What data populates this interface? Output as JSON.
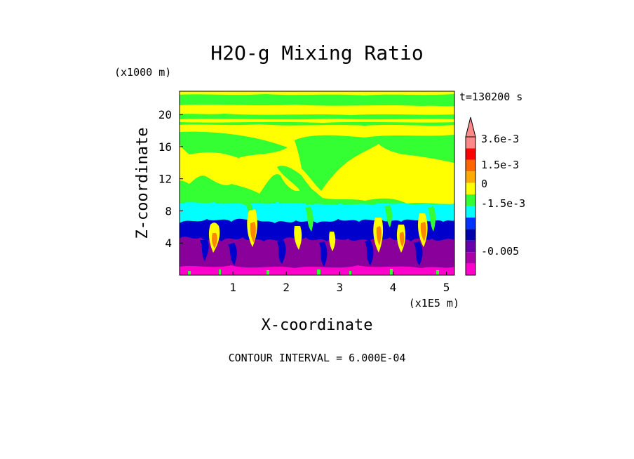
{
  "chart_data": {
    "type": "heatmap",
    "title": "H2O-g Mixing Ratio",
    "time_label": "t=130200 s",
    "xlabel": "X-coordinate",
    "ylabel": "Z-coordinate",
    "x_unit": "(x1E5 m)",
    "y_unit": "(x1000 m)",
    "xlim": [
      0,
      5.15
    ],
    "ylim": [
      0,
      22.9
    ],
    "x_ticks": [
      1,
      2,
      3,
      4,
      5
    ],
    "y_ticks": [
      4,
      8,
      12,
      16,
      20
    ],
    "footer": "CONTOUR INTERVAL = 6.000E-04",
    "colorbar": {
      "labels": [
        {
          "text": "3.6e-3",
          "value": 0.0036
        },
        {
          "text": "1.5e-3",
          "value": 0.0015
        },
        {
          "text": "0",
          "value": 0
        },
        {
          "text": "-1.5e-3",
          "value": -0.0015
        },
        {
          "text": "-0.005",
          "value": -0.005
        }
      ],
      "levels_top_to_bottom": [
        {
          "color": "#ff8888"
        },
        {
          "color": "#ff0000"
        },
        {
          "color": "#ff6600"
        },
        {
          "color": "#ffaa00"
        },
        {
          "color": "#ffff00"
        },
        {
          "color": "#33ff33"
        },
        {
          "color": "#00ffff"
        },
        {
          "color": "#0033ff"
        },
        {
          "color": "#0000aa"
        },
        {
          "color": "#6600aa"
        },
        {
          "color": "#aa00aa"
        },
        {
          "color": "#ff00cc"
        }
      ]
    },
    "field_layers": [
      {
        "name": "lower-purple-layer",
        "color": "#880099",
        "z_range": [
          0,
          4.5
        ]
      },
      {
        "name": "blue-layer",
        "color": "#0000cc",
        "z_range": [
          4.5,
          6.5
        ]
      },
      {
        "name": "cyan-layer",
        "color": "#00ffff",
        "z_range": [
          6.5,
          9
        ]
      },
      {
        "name": "green-background",
        "color": "#33ff33",
        "z_range": [
          9,
          22.9
        ]
      }
    ]
  },
  "colors": {
    "background": "#ffffff",
    "purple": "#880099",
    "magenta": "#ff00cc",
    "blue": "#0000cc",
    "cyan": "#00ffff",
    "green": "#33ff33",
    "yellow": "#ffff00",
    "orange": "#ff8800"
  }
}
